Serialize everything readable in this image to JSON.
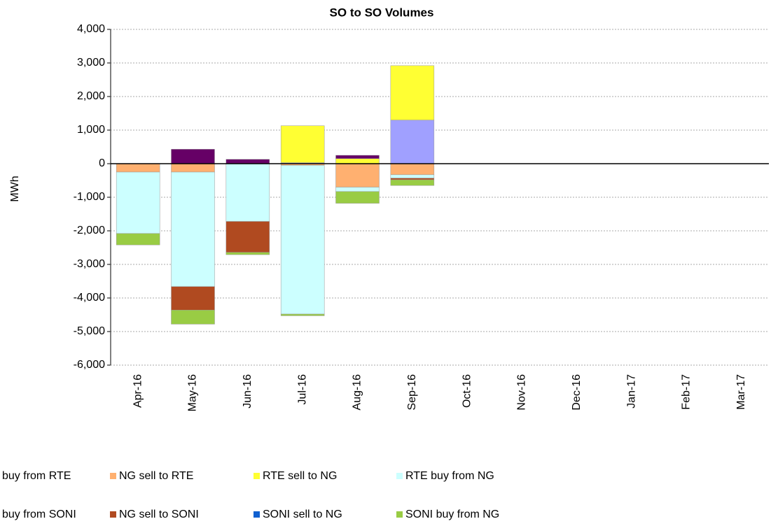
{
  "chart_data": {
    "type": "stacked_bar",
    "title": "SO to SO Volumes",
    "y_label": "MWh",
    "categories": [
      "Apr-16",
      "May-16",
      "Jun-16",
      "Jul-16",
      "Aug-16",
      "Sep-16",
      "Oct-16",
      "Nov-16",
      "Dec-16",
      "Jan-17",
      "Feb-17",
      "Mar-17"
    ],
    "series": [
      {
        "name": "buy from RTE",
        "color": "#a0a0ff",
        "values": [
          null,
          null,
          null,
          30,
          null,
          1300,
          null,
          null,
          null,
          null,
          null,
          null
        ]
      },
      {
        "name": "NG sell to RTE",
        "color": "#ffb070",
        "values": [
          -250,
          -250,
          null,
          -50,
          -700,
          -330,
          null,
          null,
          null,
          null,
          null,
          null
        ]
      },
      {
        "name": "RTE sell to NG",
        "color": "#ffff33",
        "values": [
          null,
          null,
          null,
          1100,
          150,
          1620,
          null,
          null,
          null,
          null,
          null,
          null
        ]
      },
      {
        "name": "RTE buy from NG",
        "color": "#ccffff",
        "values": [
          -1830,
          -3410,
          -1720,
          -4430,
          -130,
          -100,
          null,
          null,
          null,
          null,
          null,
          null
        ]
      },
      {
        "name": "buy from SONI",
        "color": "#660066",
        "values": [
          null,
          430,
          130,
          null,
          100,
          null,
          null,
          null,
          null,
          null,
          null,
          null
        ]
      },
      {
        "name": "NG sell to SONI",
        "color": "#b04a20",
        "values": [
          null,
          -700,
          -920,
          null,
          null,
          -50,
          null,
          null,
          null,
          null,
          null,
          null
        ]
      },
      {
        "name": "SONI sell to NG",
        "color": "#1060d0",
        "values": [
          null,
          null,
          null,
          null,
          null,
          null,
          null,
          null,
          null,
          null,
          null,
          null
        ]
      },
      {
        "name": "SONI buy from NG",
        "color": "#99cc44",
        "values": [
          -340,
          -420,
          -70,
          -50,
          -350,
          -170,
          null,
          null,
          null,
          null,
          null,
          null
        ]
      }
    ],
    "ylim": [
      -6000,
      4000
    ],
    "yticks": [
      {
        "value": -6000,
        "label": "-6,000"
      },
      {
        "value": -5000,
        "label": "-5,000"
      },
      {
        "value": -4000,
        "label": "-4,000"
      },
      {
        "value": -3000,
        "label": "-3,000"
      },
      {
        "value": -2000,
        "label": "-2,000"
      },
      {
        "value": -1000,
        "label": "-1,000"
      },
      0,
      {
        "value": 1000,
        "label": "1,000"
      },
      {
        "value": 2000,
        "label": "2,000"
      },
      {
        "value": 3000,
        "label": "3,000"
      },
      {
        "value": 4000,
        "label": "4,000"
      }
    ],
    "grid": true
  }
}
